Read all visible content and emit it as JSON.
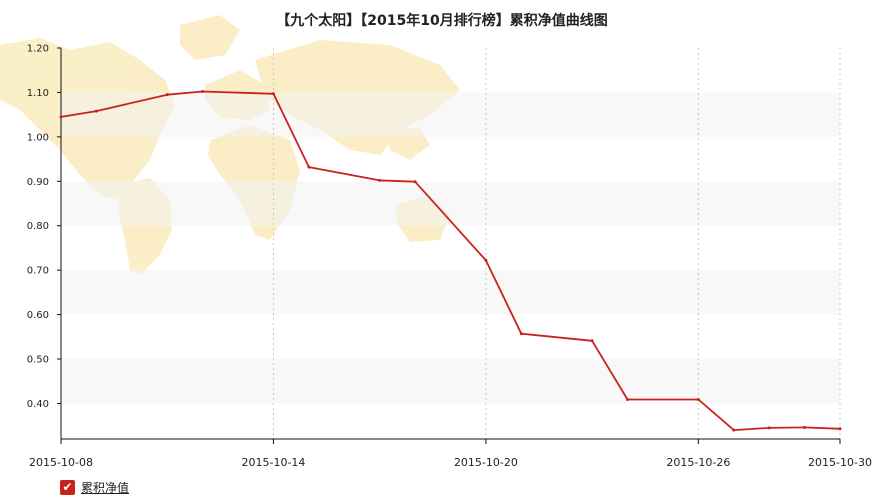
{
  "chart_data": {
    "type": "line",
    "title": "【九个太阳】【2015年10月排行榜】累积净值曲线图",
    "x_ticks": [
      "2015-10-08",
      "2015-10-14",
      "2015-10-20",
      "2015-10-26",
      "2015-10-30"
    ],
    "y_ticks": [
      "1.20",
      "1.10",
      "1.00",
      "0.90",
      "0.80",
      "0.70",
      "0.60",
      "0.50",
      "0.40"
    ],
    "ylim": [
      0.32,
      1.2
    ],
    "grid": "vertical dotted, horizontal bands",
    "legend_position": "bottom-left",
    "series": [
      {
        "name": "累积净值",
        "color": "#c8231b",
        "points": [
          {
            "x": "2015-10-08",
            "y": 1.045
          },
          {
            "x": "2015-10-09",
            "y": 1.058
          },
          {
            "x": "2015-10-11",
            "y": 1.095
          },
          {
            "x": "2015-10-12",
            "y": 1.102
          },
          {
            "x": "2015-10-14",
            "y": 1.097
          },
          {
            "x": "2015-10-15",
            "y": 0.932
          },
          {
            "x": "2015-10-17",
            "y": 0.902
          },
          {
            "x": "2015-10-18",
            "y": 0.899
          },
          {
            "x": "2015-10-20",
            "y": 0.722
          },
          {
            "x": "2015-10-21",
            "y": 0.557
          },
          {
            "x": "2015-10-23",
            "y": 0.541
          },
          {
            "x": "2015-10-24",
            "y": 0.409
          },
          {
            "x": "2015-10-26",
            "y": 0.409
          },
          {
            "x": "2015-10-27",
            "y": 0.34
          },
          {
            "x": "2015-10-28",
            "y": 0.345
          },
          {
            "x": "2015-10-29",
            "y": 0.346
          },
          {
            "x": "2015-10-30",
            "y": 0.343
          }
        ]
      }
    ]
  },
  "legend": {
    "checkbox_icon": "checkmark-icon"
  }
}
